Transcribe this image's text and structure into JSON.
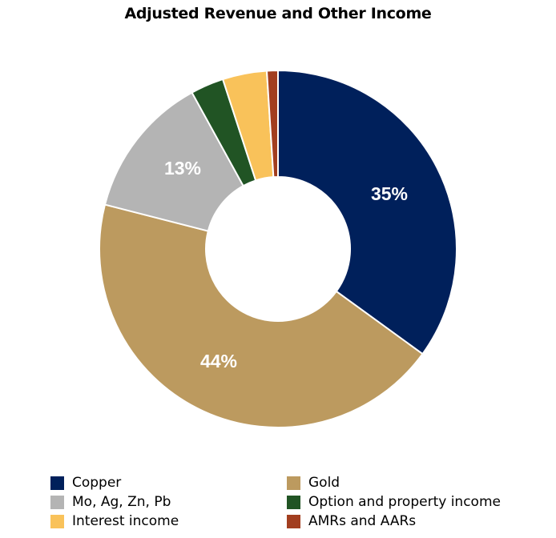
{
  "chart_data": {
    "type": "pie",
    "subtype": "donut",
    "title": "Adjusted Revenue and Other Income",
    "categories": [
      "Copper",
      "Gold",
      "Mo, Ag, Zn, Pb",
      "Option and property income",
      "Interest income",
      "AMRs and AARs"
    ],
    "values": [
      35,
      44,
      13,
      3,
      4,
      1
    ],
    "units": "%",
    "data_labels": [
      "35%",
      "44%",
      "13%",
      "",
      "",
      ""
    ],
    "colors": [
      "#00205B",
      "#BC9A5F",
      "#B4B4B4",
      "#215424",
      "#F9C25A",
      "#A23E1F"
    ],
    "legend_position": "bottom",
    "start_angle": "12 o'clock, clockwise"
  },
  "legend": {
    "items": [
      {
        "label": "Copper",
        "color": "#00205B"
      },
      {
        "label": "Mo, Ag, Zn, Pb",
        "color": "#B4B4B4"
      },
      {
        "label": "Interest income",
        "color": "#F9C25A"
      },
      {
        "label": "Gold",
        "color": "#BC9A5F"
      },
      {
        "label": "Option and property income",
        "color": "#215424"
      },
      {
        "label": "AMRs and AARs",
        "color": "#A23E1F"
      }
    ]
  }
}
